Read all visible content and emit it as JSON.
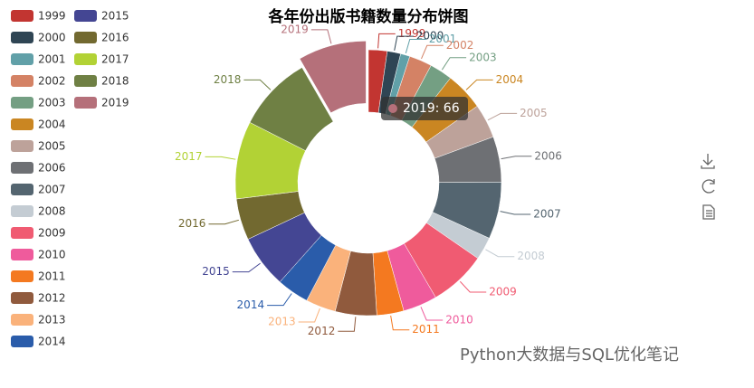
{
  "chart_data": {
    "type": "pie",
    "title": "各年份出版书籍数量分布饼图",
    "categories": [
      "1999",
      "2000",
      "2001",
      "2002",
      "2003",
      "2004",
      "2005",
      "2006",
      "2007",
      "2008",
      "2009",
      "2010",
      "2011",
      "2012",
      "2013",
      "2014",
      "2015",
      "2016",
      "2017",
      "2018",
      "2019"
    ],
    "values": [
      18,
      13,
      9,
      22,
      22,
      37,
      33,
      44,
      55,
      22,
      55,
      33,
      26,
      40,
      29,
      31,
      51,
      40,
      75,
      73,
      66
    ],
    "colors": [
      "#c23531",
      "#2f4554",
      "#61a0a8",
      "#d48265",
      "#749f83",
      "#ca8622",
      "#bda29a",
      "#6e7074",
      "#546570",
      "#c4ccd3",
      "#f05b72",
      "#ef5b9c",
      "#f47920",
      "#905a3d",
      "#fab27b",
      "#2a5caa",
      "#444693",
      "#726930",
      "#b2d235",
      "#6f8044",
      "#b5707a"
    ],
    "donut": true,
    "selected": 20,
    "tooltip": "2019: 66",
    "watermark": "Python大数据与SQL优化笔记"
  }
}
